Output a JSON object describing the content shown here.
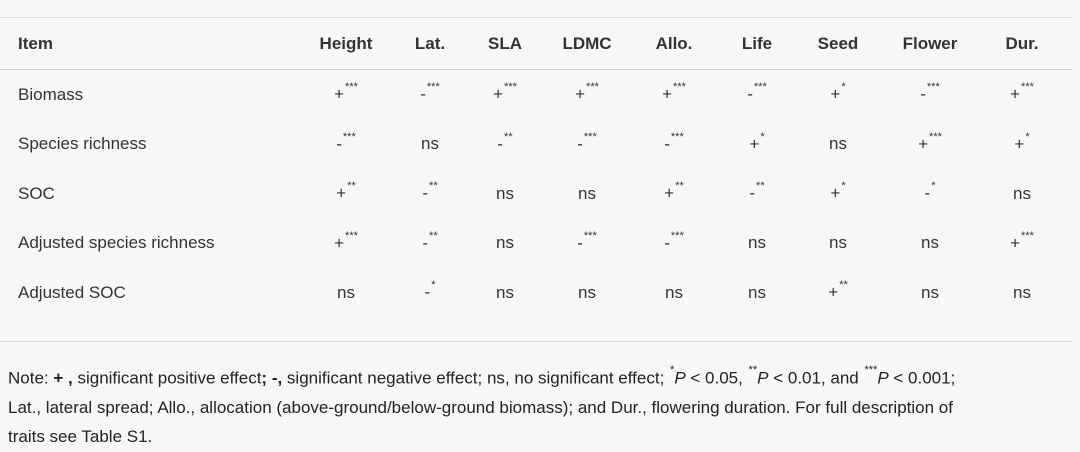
{
  "table": {
    "headers": [
      "Item",
      "Height",
      "Lat.",
      "SLA",
      "LDMC",
      "Allo.",
      "Life",
      "Seed",
      "Flower",
      "Dur."
    ],
    "rows": [
      {
        "label": "Biomass",
        "cells": [
          [
            "+",
            "***"
          ],
          [
            "-",
            "***"
          ],
          [
            "+",
            "***"
          ],
          [
            "+",
            "***"
          ],
          [
            "+",
            "***"
          ],
          [
            "-",
            "***"
          ],
          [
            "+",
            "*"
          ],
          [
            "-",
            "***"
          ],
          [
            "+",
            "***"
          ]
        ]
      },
      {
        "label": "Species richness",
        "cells": [
          [
            "-",
            "***"
          ],
          [
            "ns",
            ""
          ],
          [
            "-",
            "**"
          ],
          [
            "-",
            "***"
          ],
          [
            "-",
            "***"
          ],
          [
            "+",
            "*"
          ],
          [
            "ns",
            ""
          ],
          [
            "+",
            "***"
          ],
          [
            "+",
            "*"
          ]
        ]
      },
      {
        "label": "SOC",
        "cells": [
          [
            "+",
            "**"
          ],
          [
            "-",
            "**"
          ],
          [
            "ns",
            ""
          ],
          [
            "ns",
            ""
          ],
          [
            "+",
            "**"
          ],
          [
            "-",
            "**"
          ],
          [
            "+",
            "*"
          ],
          [
            "-",
            "*"
          ],
          [
            "ns",
            ""
          ]
        ]
      },
      {
        "label": "Adjusted species richness",
        "cells": [
          [
            "+",
            "***"
          ],
          [
            "-",
            "**"
          ],
          [
            "ns",
            ""
          ],
          [
            "-",
            "***"
          ],
          [
            "-",
            "***"
          ],
          [
            "ns",
            ""
          ],
          [
            "ns",
            ""
          ],
          [
            "ns",
            ""
          ],
          [
            "+",
            "***"
          ]
        ]
      },
      {
        "label": "Adjusted SOC",
        "cells": [
          [
            "ns",
            ""
          ],
          [
            "-",
            "*"
          ],
          [
            "ns",
            ""
          ],
          [
            "ns",
            ""
          ],
          [
            "ns",
            ""
          ],
          [
            "ns",
            ""
          ],
          [
            "+",
            "**"
          ],
          [
            "ns",
            ""
          ],
          [
            "ns",
            ""
          ]
        ]
      }
    ]
  },
  "note": {
    "prefix": "Note: ",
    "plus": "+ ,",
    "t1": " significant positive effect",
    "semi": ";",
    "minus": " -,",
    "t2": " significant negative effect; ns, no significant effect; ",
    "s1": "*",
    "p1": "P",
    "v1": " < 0.05, ",
    "s2": "**",
    "p2": "P",
    "v2": " < 0.01, and ",
    "s3": "***",
    "p3": "P",
    "v3": " < 0.001;",
    "line2": "Lat., lateral spread; Allo., allocation (above-ground/below-ground biomass); and Dur., flowering duration. For full description of",
    "line3": "traits see Table S1."
  }
}
